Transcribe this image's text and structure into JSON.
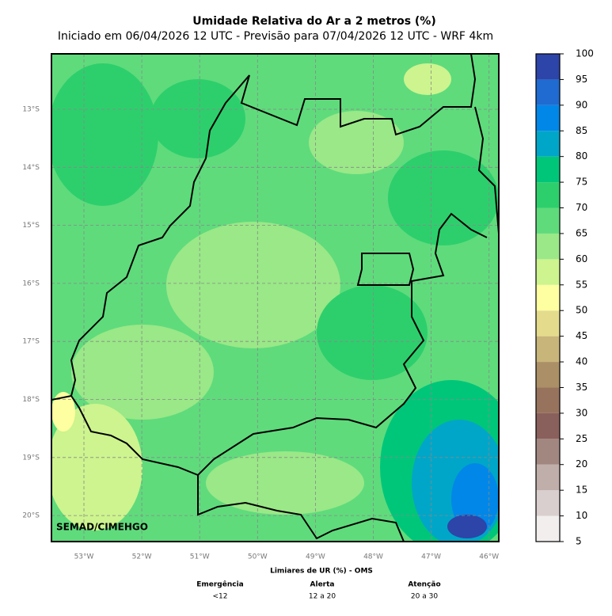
{
  "title": "Umidade Relativa do Ar a 2 metros (%)",
  "subtitle": "Iniciado em 06/04/2026 12 UTC - Previsão para 07/04/2026 12 UTC - WRF 4km",
  "map": {
    "lat_labels": [
      "13°S",
      "14°S",
      "15°S",
      "16°S",
      "17°S",
      "18°S",
      "19°S",
      "20°S"
    ],
    "lon_labels": [
      "53°W",
      "52°W",
      "51°W",
      "50°W",
      "49°W",
      "48°W",
      "47°W",
      "46°W"
    ],
    "credit": "SEMAD/CIMEHGO"
  },
  "colorbar": {
    "ticks": [
      5,
      10,
      15,
      20,
      25,
      30,
      35,
      40,
      45,
      50,
      55,
      60,
      65,
      70,
      75,
      80,
      85,
      90,
      95,
      100
    ],
    "colors": [
      "#f2eeee",
      "#dacfcf",
      "#bfaea9",
      "#a28781",
      "#8a605c",
      "#97735e",
      "#ab8f66",
      "#c8b57a",
      "#e4db8c",
      "#feffa0",
      "#cdf48e",
      "#9ae887",
      "#5fdb7c",
      "#2dcf6c",
      "#00c67a",
      "#00a6c8",
      "#0087e8",
      "#1f6bd1",
      "#2d44a8"
    ]
  },
  "thresholds": {
    "title": "Limiares de UR (%) - OMS",
    "levels": [
      {
        "name": "Emergência",
        "range": "<12"
      },
      {
        "name": "Alerta",
        "range": "12 a 20"
      },
      {
        "name": "Atenção",
        "range": "20 a 30"
      }
    ]
  }
}
